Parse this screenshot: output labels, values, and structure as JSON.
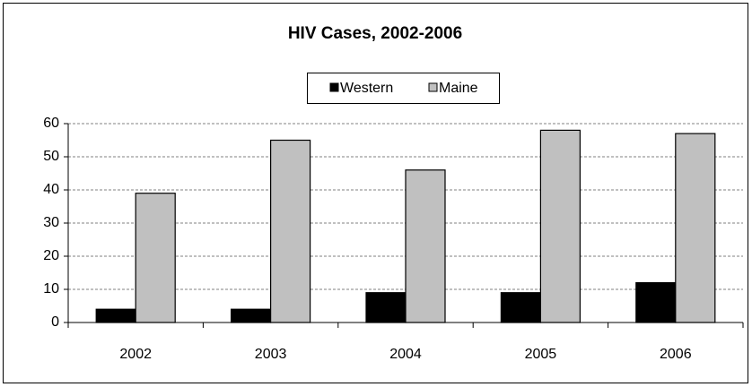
{
  "chart_data": {
    "type": "bar",
    "title": "HIV Cases, 2002-2006",
    "categories": [
      "2002",
      "2003",
      "2004",
      "2005",
      "2006"
    ],
    "series": [
      {
        "name": "Western",
        "color": "#000000",
        "values": [
          4,
          4,
          9,
          9,
          12
        ]
      },
      {
        "name": "Maine",
        "color": "#c0c0c0",
        "values": [
          39,
          55,
          46,
          58,
          57
        ]
      }
    ],
    "ylim": [
      0,
      60
    ],
    "yticks": [
      0,
      10,
      20,
      30,
      40,
      50,
      60
    ],
    "grid": true,
    "legend": "top"
  }
}
